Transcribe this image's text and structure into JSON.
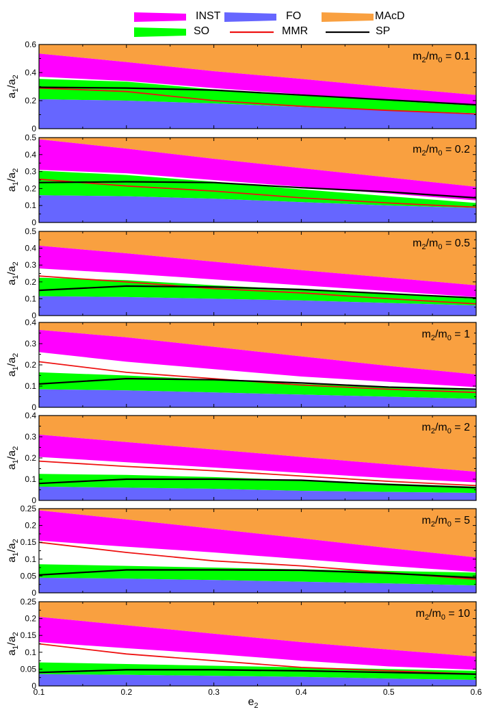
{
  "figure": {
    "xlabel": "e",
    "xlabel_sub": "2",
    "ylabel_main": "a",
    "ylabel_sub1": "1",
    "ylabel_slash": "/a",
    "ylabel_sub2": "2"
  },
  "legend": [
    {
      "label": "INST",
      "type": "band",
      "color": "#FF00FF"
    },
    {
      "label": "FO",
      "type": "band",
      "color": "#6666FF"
    },
    {
      "label": "MAcD",
      "type": "band",
      "color": "#F9A040"
    },
    {
      "label": "SO",
      "type": "band",
      "color": "#00FF00"
    },
    {
      "label": "MMR",
      "type": "line",
      "color": "#EE1111"
    },
    {
      "label": "SP",
      "type": "line",
      "color": "#000000"
    }
  ],
  "chart_data": [
    {
      "type": "area",
      "annotation": {
        "m": "m",
        "sub2": "2",
        "slash": "/m",
        "sub0": "0",
        "value": " = 0.1"
      },
      "x": [
        0.1,
        0.2,
        0.3,
        0.4,
        0.5,
        0.6
      ],
      "xlim": [
        0.1,
        0.6
      ],
      "ylim": [
        0,
        0.6
      ],
      "yticks": [
        "0",
        "0.2",
        "0.4",
        "0.6"
      ],
      "ytick_values": [
        0,
        0.2,
        0.4,
        0.6
      ],
      "fo_top": [
        0.21,
        0.2,
        0.18,
        0.155,
        0.13,
        0.11
      ],
      "so_top": [
        0.355,
        0.335,
        0.28,
        0.24,
        0.2,
        0.165
      ],
      "inst_bottom": [
        0.37,
        0.34,
        0.29,
        0.245,
        0.205,
        0.17
      ],
      "inst_top": [
        0.535,
        0.475,
        0.41,
        0.355,
        0.295,
        0.24
      ],
      "mmr": [
        0.29,
        0.265,
        0.2,
        0.16,
        0.13,
        0.105
      ],
      "sp": [
        0.295,
        0.29,
        0.275,
        0.24,
        0.205,
        0.17
      ]
    },
    {
      "type": "area",
      "annotation": {
        "m": "m",
        "sub2": "2",
        "slash": "/m",
        "sub0": "0",
        "value": " = 0.2"
      },
      "x": [
        0.1,
        0.2,
        0.3,
        0.4,
        0.5,
        0.6
      ],
      "xlim": [
        0.1,
        0.6
      ],
      "ylim": [
        0,
        0.5
      ],
      "yticks": [
        "0",
        "0.1",
        "0.2",
        "0.3",
        "0.4",
        "0.5"
      ],
      "ytick_values": [
        0,
        0.1,
        0.2,
        0.3,
        0.4,
        0.5
      ],
      "fo_top": [
        0.16,
        0.155,
        0.14,
        0.12,
        0.1,
        0.085
      ],
      "so_top": [
        0.305,
        0.28,
        0.24,
        0.195,
        0.155,
        0.115
      ],
      "inst_bottom": [
        0.31,
        0.29,
        0.25,
        0.21,
        0.17,
        0.13
      ],
      "inst_top": [
        0.49,
        0.435,
        0.375,
        0.32,
        0.265,
        0.21
      ],
      "mmr": [
        0.255,
        0.215,
        0.185,
        0.145,
        0.115,
        0.09
      ],
      "sp": [
        0.235,
        0.24,
        0.235,
        0.205,
        0.18,
        0.145
      ]
    },
    {
      "type": "area",
      "annotation": {
        "m": "m",
        "sub2": "2",
        "slash": "/m",
        "sub0": "0",
        "value": " = 0.5"
      },
      "x": [
        0.1,
        0.2,
        0.3,
        0.4,
        0.5,
        0.6
      ],
      "xlim": [
        0.1,
        0.6
      ],
      "ylim": [
        0,
        0.5
      ],
      "yticks": [
        "0",
        "0.1",
        "0.2",
        "0.3",
        "0.4",
        "0.5"
      ],
      "ytick_values": [
        0,
        0.1,
        0.2,
        0.3,
        0.4,
        0.5
      ],
      "fo_top": [
        0.115,
        0.11,
        0.1,
        0.09,
        0.075,
        0.06
      ],
      "so_top": [
        0.225,
        0.21,
        0.18,
        0.155,
        0.13,
        0.1
      ],
      "inst_bottom": [
        0.28,
        0.25,
        0.215,
        0.18,
        0.145,
        0.11
      ],
      "inst_top": [
        0.415,
        0.37,
        0.32,
        0.27,
        0.225,
        0.18
      ],
      "mmr": [
        0.235,
        0.2,
        0.16,
        0.135,
        0.1,
        0.07
      ],
      "sp": [
        0.15,
        0.175,
        0.17,
        0.155,
        0.13,
        0.105
      ]
    },
    {
      "type": "area",
      "annotation": {
        "m": "m",
        "sub2": "2",
        "slash": "/m",
        "sub0": "0",
        "value": " = 1"
      },
      "x": [
        0.1,
        0.2,
        0.3,
        0.4,
        0.5,
        0.6
      ],
      "xlim": [
        0.1,
        0.6
      ],
      "ylim": [
        0,
        0.4
      ],
      "yticks": [
        "0",
        "0.1",
        "0.2",
        "0.3",
        "0.4"
      ],
      "ytick_values": [
        0,
        0.1,
        0.2,
        0.3,
        0.4
      ],
      "fo_top": [
        0.085,
        0.08,
        0.07,
        0.06,
        0.05,
        0.04
      ],
      "so_top": [
        0.165,
        0.15,
        0.13,
        0.11,
        0.095,
        0.08
      ],
      "inst_bottom": [
        0.26,
        0.215,
        0.18,
        0.145,
        0.12,
        0.095
      ],
      "inst_top": [
        0.365,
        0.33,
        0.285,
        0.24,
        0.195,
        0.155
      ],
      "mmr": [
        0.215,
        0.165,
        0.135,
        0.105,
        0.085,
        0.07
      ],
      "sp": [
        0.11,
        0.135,
        0.13,
        0.115,
        0.095,
        0.085
      ]
    },
    {
      "type": "area",
      "annotation": {
        "m": "m",
        "sub2": "2",
        "slash": "/m",
        "sub0": "0",
        "value": " = 2"
      },
      "x": [
        0.1,
        0.2,
        0.3,
        0.4,
        0.5,
        0.6
      ],
      "xlim": [
        0.1,
        0.6
      ],
      "ylim": [
        0,
        0.4
      ],
      "yticks": [
        "0",
        "0.1",
        "0.2",
        "0.3",
        "0.4"
      ],
      "ytick_values": [
        0,
        0.1,
        0.2,
        0.3,
        0.4
      ],
      "fo_top": [
        0.065,
        0.06,
        0.055,
        0.045,
        0.04,
        0.035
      ],
      "so_top": [
        0.125,
        0.12,
        0.11,
        0.095,
        0.08,
        0.065
      ],
      "inst_bottom": [
        0.205,
        0.18,
        0.155,
        0.13,
        0.105,
        0.085
      ],
      "inst_top": [
        0.31,
        0.275,
        0.24,
        0.205,
        0.17,
        0.135
      ],
      "mmr": [
        0.185,
        0.16,
        0.14,
        0.115,
        0.09,
        0.07
      ],
      "sp": [
        0.08,
        0.1,
        0.1,
        0.095,
        0.075,
        0.06
      ]
    },
    {
      "type": "area",
      "annotation": {
        "m": "m",
        "sub2": "2",
        "slash": "/m",
        "sub0": "0",
        "value": " = 5"
      },
      "x": [
        0.1,
        0.2,
        0.3,
        0.4,
        0.5,
        0.6
      ],
      "xlim": [
        0.1,
        0.6
      ],
      "ylim": [
        0,
        0.25
      ],
      "yticks": [
        "0",
        "0.05",
        "0.1",
        "0.15",
        "0.2",
        "0.25"
      ],
      "ytick_values": [
        0,
        0.05,
        0.1,
        0.15,
        0.2,
        0.25
      ],
      "fo_top": [
        0.045,
        0.042,
        0.038,
        0.033,
        0.028,
        0.022
      ],
      "so_top": [
        0.085,
        0.08,
        0.075,
        0.07,
        0.065,
        0.06
      ],
      "inst_bottom": [
        0.155,
        0.137,
        0.12,
        0.1,
        0.08,
        0.062
      ],
      "inst_top": [
        0.245,
        0.218,
        0.19,
        0.162,
        0.133,
        0.105
      ],
      "mmr": [
        0.15,
        0.12,
        0.095,
        0.08,
        0.06,
        0.04
      ],
      "sp": [
        0.053,
        0.068,
        0.068,
        0.067,
        0.058,
        0.045
      ]
    },
    {
      "type": "area",
      "annotation": {
        "m": "m",
        "sub2": "2",
        "slash": "/m",
        "sub0": "0",
        "value": " = 10"
      },
      "x": [
        0.1,
        0.2,
        0.3,
        0.4,
        0.5,
        0.6
      ],
      "xlim": [
        0.1,
        0.6
      ],
      "ylim": [
        0,
        0.25
      ],
      "yticks": [
        "0",
        "0.05",
        "0.1",
        "0.15",
        "0.2",
        "0.25"
      ],
      "ytick_values": [
        0,
        0.05,
        0.1,
        0.15,
        0.2,
        0.25
      ],
      "xticks": [
        "0.1",
        "0.2",
        "0.3",
        "0.4",
        "0.5",
        "0.6"
      ],
      "xtick_values": [
        0.1,
        0.2,
        0.3,
        0.4,
        0.5,
        0.6
      ],
      "fo_top": [
        0.035,
        0.033,
        0.03,
        0.027,
        0.022,
        0.018
      ],
      "so_top": [
        0.07,
        0.065,
        0.06,
        0.055,
        0.05,
        0.045
      ],
      "inst_bottom": [
        0.13,
        0.112,
        0.095,
        0.075,
        0.058,
        0.048
      ],
      "inst_top": [
        0.205,
        0.18,
        0.155,
        0.13,
        0.108,
        0.087
      ],
      "mmr": [
        0.125,
        0.095,
        0.075,
        0.055,
        0.045,
        0.035
      ],
      "sp": [
        0.04,
        0.048,
        0.048,
        0.045,
        0.04,
        0.035
      ]
    }
  ]
}
